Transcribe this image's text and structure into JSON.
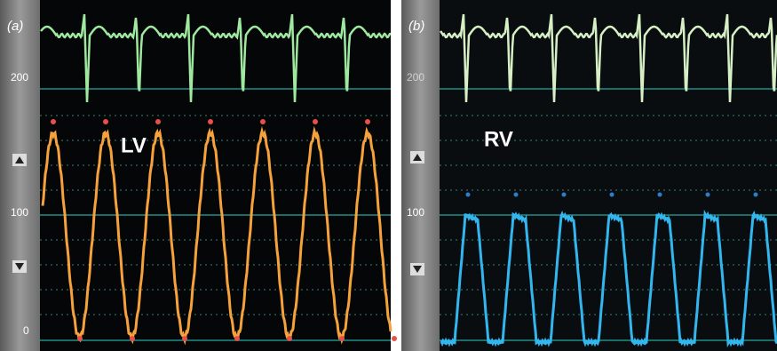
{
  "panels": [
    {
      "label": "(a)",
      "chamber": "LV",
      "scale": [
        "200",
        "100",
        "0"
      ]
    },
    {
      "label": "(b)",
      "chamber": "RV",
      "scale": [
        "200",
        "100"
      ]
    }
  ]
}
